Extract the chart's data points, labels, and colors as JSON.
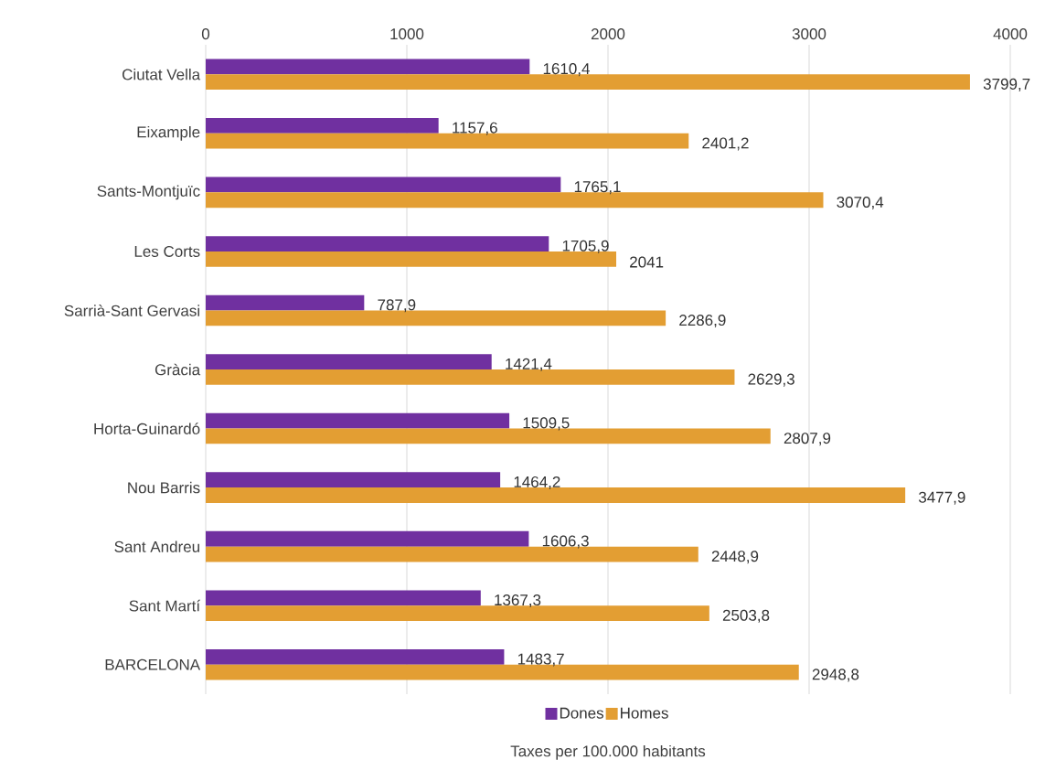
{
  "chart_data": {
    "type": "bar",
    "orientation": "horizontal",
    "xlabel": "Taxes per 100.000 habitants",
    "categories": [
      "Ciutat Vella",
      "Eixample",
      "Sants-Montjuïc",
      "Les Corts",
      "Sarrià-Sant Gervasi",
      "Gràcia",
      "Horta-Guinardó",
      "Nou Barris",
      "Sant Andreu",
      "Sant Martí",
      "BARCELONA"
    ],
    "series": [
      {
        "name": "Dones",
        "color": "#7030a0",
        "values": [
          1610.4,
          1157.6,
          1765.1,
          1705.9,
          787.9,
          1421.4,
          1509.5,
          1464.2,
          1606.3,
          1367.3,
          1483.7
        ],
        "value_labels": [
          "1610,4",
          "1157,6",
          "1765,1",
          "1705,9",
          "787,9",
          "1421,4",
          "1509,5",
          "1464,2",
          "1606,3",
          "1367,3",
          "1483,7"
        ]
      },
      {
        "name": "Homes",
        "color": "#e39e33",
        "values": [
          3799.7,
          2401.2,
          3070.4,
          2041,
          2286.9,
          2629.3,
          2807.9,
          3477.9,
          2448.9,
          2503.8,
          2948.8
        ],
        "value_labels": [
          "3799,7",
          "2401,2",
          "3070,4",
          "2041",
          "2286,9",
          "2629,3",
          "2807,9",
          "3477,9",
          "2448,9",
          "2503,8",
          "2948,8"
        ]
      }
    ],
    "xlim": [
      0,
      4000
    ],
    "xticks": [
      0,
      1000,
      2000,
      3000,
      4000
    ],
    "grid": "x",
    "legend": "bottom"
  }
}
